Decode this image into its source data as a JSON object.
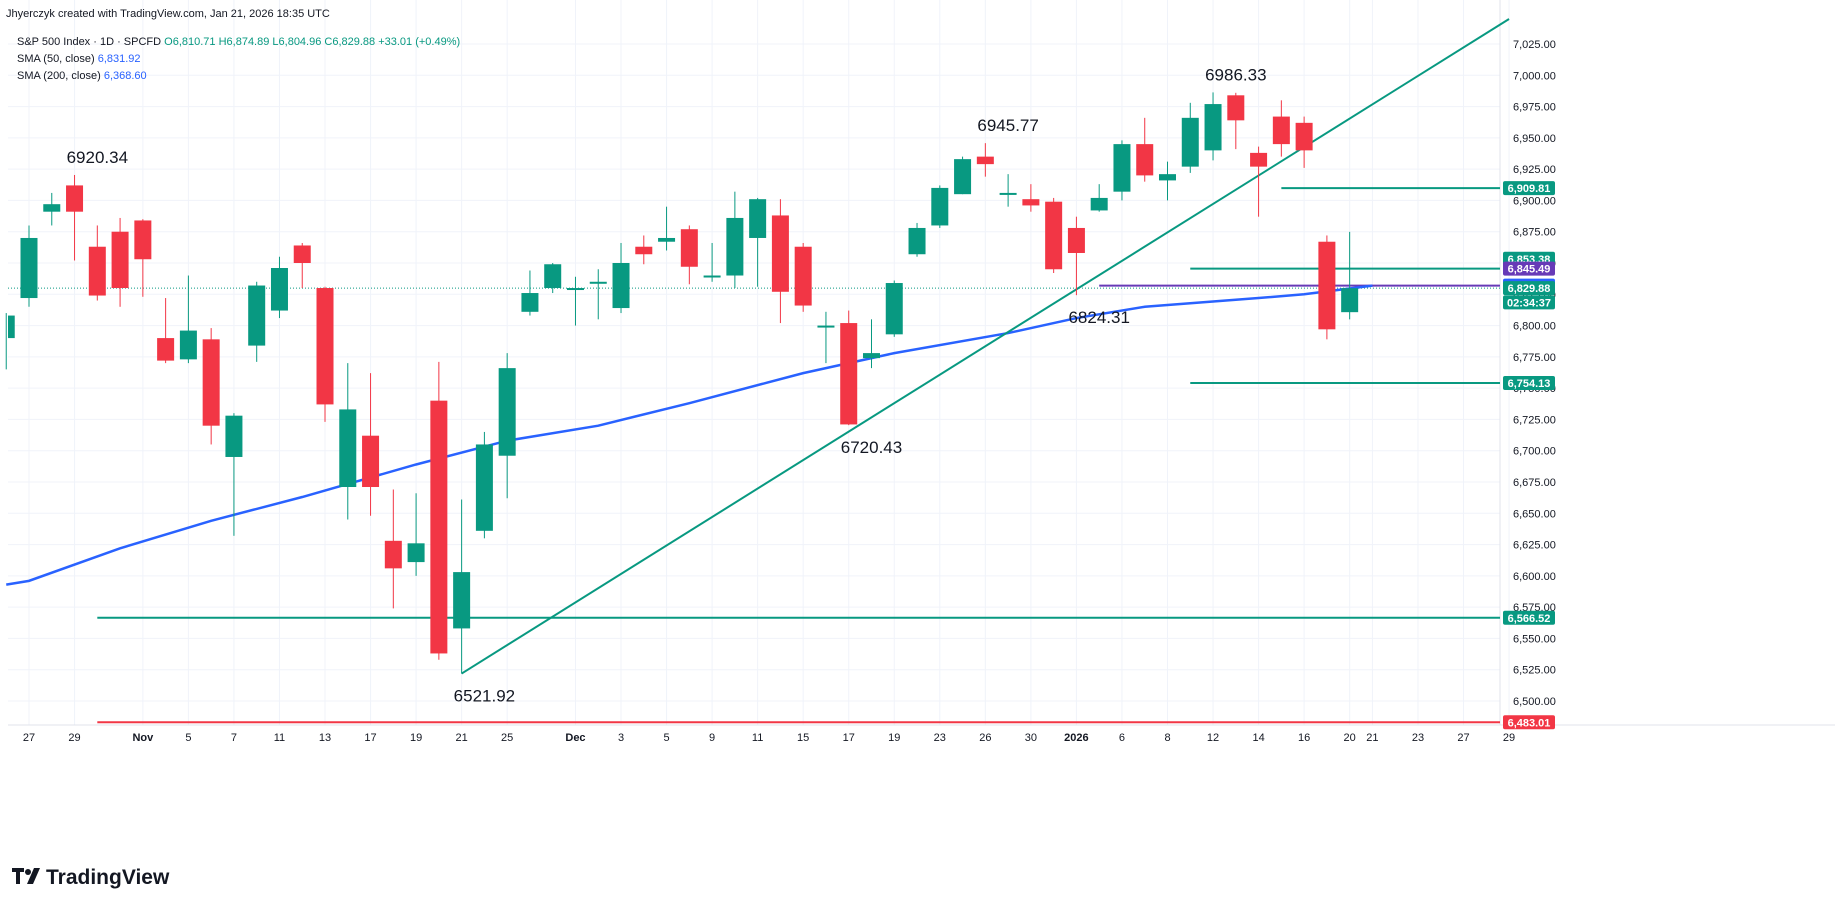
{
  "header": {
    "credit": "Jhyerczyk created with TradingView.com, Jan 21, 2026 18:35 UTC"
  },
  "legend": {
    "symbol": "S&P 500 Index · 1D · SPCFD",
    "ohlc_text": "O6,810.71  H6,874.89  L6,804.96  C6,829.88  +33.01 (+0.49%)",
    "sma50_label": "SMA (50, close)",
    "sma50_value": "6,831.92",
    "sma200_label": "SMA (200, close)",
    "sma200_value": "6,368.60"
  },
  "footer": {
    "brand": "TradingView"
  },
  "colors": {
    "up": "#089981",
    "down": "#f23645",
    "sma": "#2962ff",
    "purple": "#673ab7"
  },
  "chart_data": {
    "type": "candlestick",
    "title": "S&P 500 Index · 1D · SPCFD",
    "ylim": [
      6470,
      7045
    ],
    "y_ticks": [
      6500,
      6525,
      6550,
      6575,
      6600,
      6625,
      6650,
      6675,
      6700,
      6725,
      6750,
      6775,
      6800,
      6825,
      6850,
      6875,
      6900,
      6925,
      6950,
      6975,
      7000,
      7025
    ],
    "y_tick_labels": [
      "6,500.00",
      "6,525.00",
      "6,550.00",
      "6,575.00",
      "6,600.00",
      "6,625.00",
      "6,650.00",
      "6,675.00",
      "6,700.00",
      "6,725.00",
      "6,750.00",
      "6,775.00",
      "6,800.00",
      "6,825.00",
      "6,850.00",
      "6,875.00",
      "6,900.00",
      "6,925.00",
      "6,950.00",
      "6,975.00",
      "7,000.00",
      "7,025.00"
    ],
    "x_ticks": [
      {
        "i": 0,
        "label": "27"
      },
      {
        "i": 2,
        "label": "29"
      },
      {
        "i": 5,
        "label": "Nov"
      },
      {
        "i": 7,
        "label": "5"
      },
      {
        "i": 9,
        "label": "7"
      },
      {
        "i": 11,
        "label": "11"
      },
      {
        "i": 13,
        "label": "13"
      },
      {
        "i": 15,
        "label": "17"
      },
      {
        "i": 17,
        "label": "19"
      },
      {
        "i": 19,
        "label": "21"
      },
      {
        "i": 21,
        "label": "25"
      },
      {
        "i": 24,
        "label": "Dec"
      },
      {
        "i": 26,
        "label": "3"
      },
      {
        "i": 28,
        "label": "5"
      },
      {
        "i": 30,
        "label": "9"
      },
      {
        "i": 32,
        "label": "11"
      },
      {
        "i": 34,
        "label": "15"
      },
      {
        "i": 36,
        "label": "17"
      },
      {
        "i": 38,
        "label": "19"
      },
      {
        "i": 40,
        "label": "23"
      },
      {
        "i": 42,
        "label": "26"
      },
      {
        "i": 44,
        "label": "30"
      },
      {
        "i": 46,
        "label": "2026"
      },
      {
        "i": 48,
        "label": "6"
      },
      {
        "i": 50,
        "label": "8"
      },
      {
        "i": 52,
        "label": "12"
      },
      {
        "i": 54,
        "label": "14"
      },
      {
        "i": 56,
        "label": "16"
      },
      {
        "i": 58,
        "label": "20"
      },
      {
        "i": 59,
        "label": "21"
      },
      {
        "i": 61,
        "label": "23"
      },
      {
        "i": 63,
        "label": "27"
      },
      {
        "i": 65,
        "label": "29"
      }
    ],
    "candles": [
      {
        "d": "Oct 24",
        "o": 6790,
        "h": 6810,
        "l": 6765,
        "c": 6808
      },
      {
        "d": "Oct 27",
        "o": 6822,
        "h": 6880,
        "l": 6815,
        "c": 6870
      },
      {
        "d": "Oct 28",
        "o": 6891,
        "h": 6906,
        "l": 6880,
        "c": 6897
      },
      {
        "d": "Oct 29",
        "o": 6912,
        "h": 6920.34,
        "l": 6852,
        "c": 6891
      },
      {
        "d": "Oct 30",
        "o": 6863,
        "h": 6880,
        "l": 6820,
        "c": 6824
      },
      {
        "d": "Oct 31",
        "o": 6875,
        "h": 6886,
        "l": 6815,
        "c": 6830
      },
      {
        "d": "Nov 3",
        "o": 6884,
        "h": 6885,
        "l": 6823,
        "c": 6853
      },
      {
        "d": "Nov 4",
        "o": 6790,
        "h": 6822,
        "l": 6770,
        "c": 6772
      },
      {
        "d": "Nov 5",
        "o": 6773,
        "h": 6840,
        "l": 6770,
        "c": 6796
      },
      {
        "d": "Nov 6",
        "o": 6789,
        "h": 6798,
        "l": 6705,
        "c": 6720
      },
      {
        "d": "Nov 7",
        "o": 6695,
        "h": 6730,
        "l": 6632,
        "c": 6728
      },
      {
        "d": "Nov 10",
        "o": 6784,
        "h": 6835,
        "l": 6771,
        "c": 6832
      },
      {
        "d": "Nov 11",
        "o": 6812,
        "h": 6855,
        "l": 6806,
        "c": 6846
      },
      {
        "d": "Nov 12",
        "o": 6864,
        "h": 6866,
        "l": 6830,
        "c": 6850
      },
      {
        "d": "Nov 13",
        "o": 6830,
        "h": 6831,
        "l": 6723,
        "c": 6737
      },
      {
        "d": "Nov 14",
        "o": 6671,
        "h": 6770,
        "l": 6645,
        "c": 6733
      },
      {
        "d": "Nov 17",
        "o": 6712,
        "h": 6762,
        "l": 6648,
        "c": 6671
      },
      {
        "d": "Nov 18",
        "o": 6628,
        "h": 6669,
        "l": 6574,
        "c": 6606
      },
      {
        "d": "Nov 19",
        "o": 6611,
        "h": 6666,
        "l": 6600,
        "c": 6626
      },
      {
        "d": "Nov 20",
        "o": 6740,
        "h": 6771,
        "l": 6533,
        "c": 6538
      },
      {
        "d": "Nov 21",
        "o": 6558,
        "h": 6661,
        "l": 6521.92,
        "c": 6603
      },
      {
        "d": "Nov 24",
        "o": 6636,
        "h": 6715,
        "l": 6630,
        "c": 6705
      },
      {
        "d": "Nov 25",
        "o": 6696,
        "h": 6778,
        "l": 6662,
        "c": 6766
      },
      {
        "d": "Nov 26",
        "o": 6811,
        "h": 6844,
        "l": 6808,
        "c": 6826
      },
      {
        "d": "Nov 28",
        "o": 6830,
        "h": 6850,
        "l": 6826,
        "c": 6849
      },
      {
        "d": "Dec 1",
        "o": 6829,
        "h": 6839,
        "l": 6800,
        "c": 6830
      },
      {
        "d": "Dec 2",
        "o": 6834,
        "h": 6845,
        "l": 6805,
        "c": 6835
      },
      {
        "d": "Dec 3",
        "o": 6814,
        "h": 6866,
        "l": 6810,
        "c": 6850
      },
      {
        "d": "Dec 4",
        "o": 6863,
        "h": 6872,
        "l": 6849,
        "c": 6857
      },
      {
        "d": "Dec 5",
        "o": 6867,
        "h": 6895,
        "l": 6860,
        "c": 6870
      },
      {
        "d": "Dec 8",
        "o": 6877,
        "h": 6880,
        "l": 6833,
        "c": 6847
      },
      {
        "d": "Dec 9",
        "o": 6840,
        "h": 6866,
        "l": 6835,
        "c": 6840
      },
      {
        "d": "Dec 10",
        "o": 6840,
        "h": 6907,
        "l": 6830,
        "c": 6886
      },
      {
        "d": "Dec 11",
        "o": 6870,
        "h": 6902,
        "l": 6831,
        "c": 6901
      },
      {
        "d": "Dec 12",
        "o": 6888,
        "h": 6901,
        "l": 6802,
        "c": 6827
      },
      {
        "d": "Dec 15",
        "o": 6863,
        "h": 6866,
        "l": 6811,
        "c": 6816
      },
      {
        "d": "Dec 16",
        "o": 6800,
        "h": 6811,
        "l": 6770,
        "c": 6800
      },
      {
        "d": "Dec 17",
        "o": 6802,
        "h": 6812,
        "l": 6720.43,
        "c": 6721
      },
      {
        "d": "Dec 18",
        "o": 6774,
        "h": 6805,
        "l": 6766,
        "c": 6778
      },
      {
        "d": "Dec 19",
        "o": 6793,
        "h": 6836,
        "l": 6791,
        "c": 6834
      },
      {
        "d": "Dec 22",
        "o": 6857,
        "h": 6882,
        "l": 6855,
        "c": 6878
      },
      {
        "d": "Dec 23",
        "o": 6880,
        "h": 6912,
        "l": 6878,
        "c": 6910
      },
      {
        "d": "Dec 24",
        "o": 6905,
        "h": 6935,
        "l": 6905,
        "c": 6933
      },
      {
        "d": "Dec 26",
        "o": 6935,
        "h": 6945.77,
        "l": 6919,
        "c": 6929
      },
      {
        "d": "Dec 29",
        "o": 6905,
        "h": 6921,
        "l": 6895,
        "c": 6906
      },
      {
        "d": "Dec 30",
        "o": 6901,
        "h": 6913,
        "l": 6891,
        "c": 6896
      },
      {
        "d": "Dec 31",
        "o": 6899,
        "h": 6902,
        "l": 6842,
        "c": 6845
      },
      {
        "d": "Jan 2",
        "o": 6878,
        "h": 6887,
        "l": 6824.31,
        "c": 6858
      },
      {
        "d": "Jan 5",
        "o": 6892,
        "h": 6913,
        "l": 6891,
        "c": 6902
      },
      {
        "d": "Jan 6",
        "o": 6907,
        "h": 6948,
        "l": 6900,
        "c": 6945
      },
      {
        "d": "Jan 7",
        "o": 6945,
        "h": 6966,
        "l": 6915,
        "c": 6920
      },
      {
        "d": "Jan 8",
        "o": 6916,
        "h": 6931,
        "l": 6900,
        "c": 6921
      },
      {
        "d": "Jan 9",
        "o": 6927,
        "h": 6978,
        "l": 6922,
        "c": 6966
      },
      {
        "d": "Jan 12",
        "o": 6940,
        "h": 6986.33,
        "l": 6932,
        "c": 6977
      },
      {
        "d": "Jan 13",
        "o": 6984,
        "h": 6986,
        "l": 6941,
        "c": 6964
      },
      {
        "d": "Jan 14",
        "o": 6938,
        "h": 6943,
        "l": 6887,
        "c": 6927
      },
      {
        "d": "Jan 15",
        "o": 6967,
        "h": 6980,
        "l": 6935,
        "c": 6945
      },
      {
        "d": "Jan 16",
        "o": 6962,
        "h": 6967,
        "l": 6926,
        "c": 6940
      },
      {
        "d": "Jan 20",
        "o": 6867,
        "h": 6872,
        "l": 6789,
        "c": 6797
      },
      {
        "d": "Jan 21",
        "o": 6810.71,
        "h": 6874.89,
        "l": 6804.96,
        "c": 6829.88
      }
    ],
    "sma50": {
      "name": "SMA (50, close)",
      "points": [
        [
          0,
          6596
        ],
        [
          4,
          6622
        ],
        [
          8,
          6644
        ],
        [
          12,
          6663
        ],
        [
          17,
          6689
        ],
        [
          21,
          6708
        ],
        [
          25,
          6720
        ],
        [
          29,
          6738
        ],
        [
          34,
          6762
        ],
        [
          38,
          6778
        ],
        [
          43,
          6794
        ],
        [
          46,
          6806
        ],
        [
          49,
          6815
        ],
        [
          54,
          6822
        ],
        [
          56,
          6825
        ],
        [
          59,
          6831.92
        ]
      ]
    },
    "trendline": {
      "from": [
        19,
        6521.92
      ],
      "to": [
        65,
        7045
      ]
    },
    "horizontal_lines": [
      {
        "value": 6909.81,
        "label": "6,909.81",
        "color": "#089981",
        "from": 55
      },
      {
        "value": 6845.49,
        "label": "6,845.49",
        "color": "#089981",
        "from": 51
      },
      {
        "value": 6831.92,
        "label": "6,831.92",
        "color": "#673ab7",
        "from": 47
      },
      {
        "value": 6754.13,
        "label": "6,754.13",
        "color": "#089981",
        "from": 51
      },
      {
        "value": 6566.52,
        "label": "6,566.52",
        "color": "#089981",
        "from": 3
      },
      {
        "value": 6483.01,
        "label": "6,483.01",
        "color": "#f23645",
        "from": 3
      }
    ],
    "price_tags": [
      {
        "value": 6853.38,
        "label": "6,853.38",
        "color": "#089981"
      },
      {
        "value": 6845.49,
        "label": "6,845.49",
        "color": "#673ab7"
      },
      {
        "value": 6831.92,
        "label": "6,831.92",
        "color": "#2962ff"
      },
      {
        "value": 6829.88,
        "label": "6,829.88",
        "color": "#089981"
      },
      {
        "value": 6818.5,
        "label": "02:34:37",
        "color": "#089981"
      }
    ],
    "last_close_line": 6829.88,
    "annotations": [
      {
        "text": "6920.34",
        "i": 3,
        "value": 6920.34,
        "pos": "above"
      },
      {
        "text": "6521.92",
        "i": 20,
        "value": 6521.92,
        "pos": "below"
      },
      {
        "text": "6720.43",
        "i": 37,
        "value": 6720.43,
        "pos": "below"
      },
      {
        "text": "6945.77",
        "i": 43,
        "value": 6945.77,
        "pos": "above"
      },
      {
        "text": "6824.31",
        "i": 47,
        "value": 6824.31,
        "pos": "below"
      },
      {
        "text": "6986.33",
        "i": 53,
        "value": 6986.33,
        "pos": "above"
      }
    ]
  }
}
